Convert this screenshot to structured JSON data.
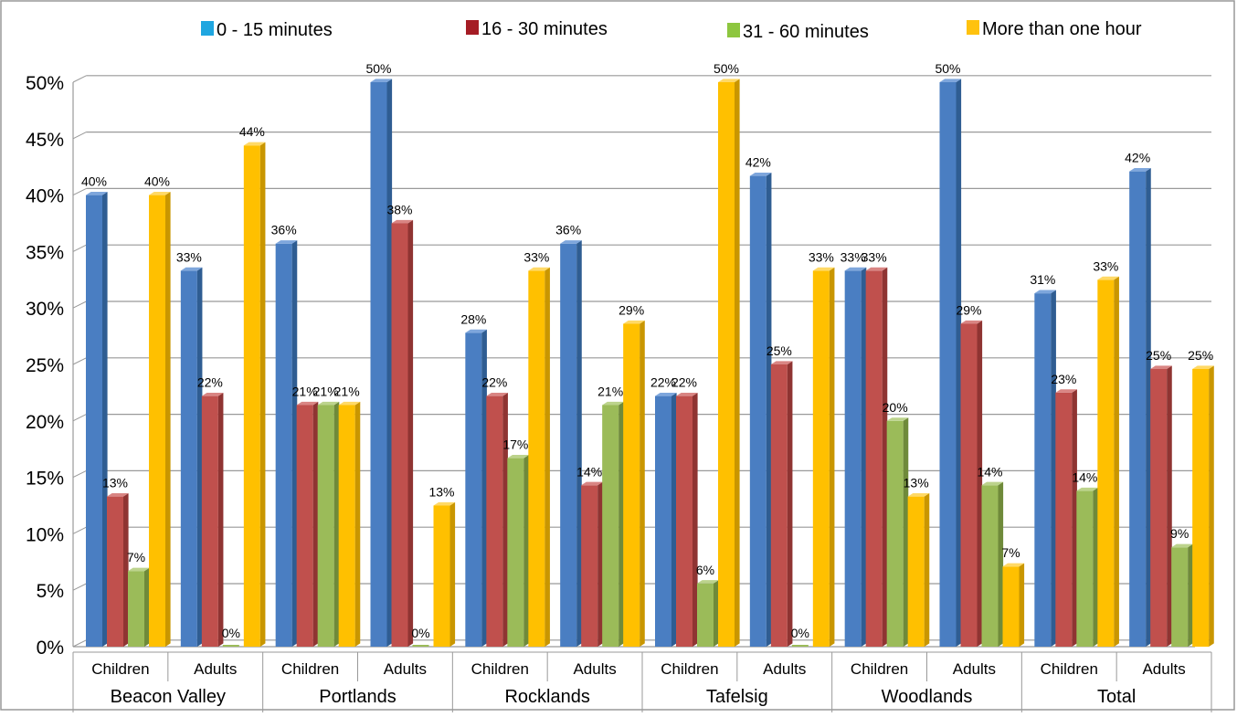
{
  "colors": {
    "series": [
      "#4a7ec2",
      "#c0504d",
      "#9bbb59",
      "#ffc000"
    ],
    "series_side": [
      "#2f5d92",
      "#8f3432",
      "#6f8a3a",
      "#c99600"
    ],
    "series_top": [
      "#7ea6dc",
      "#d98583",
      "#bcd38c",
      "#ffd966"
    ],
    "legend_swatches": [
      "#1fa6e0",
      "#a51c24",
      "#8dc63f",
      "#ffc20e"
    ],
    "grid": "#999999",
    "frame": "#999999"
  },
  "chart_data": {
    "type": "bar",
    "title": "",
    "xlabel": "",
    "ylabel": "",
    "ylim": [
      0,
      50
    ],
    "yticks": [
      "0%",
      "5%",
      "10%",
      "15%",
      "20%",
      "25%",
      "30%",
      "35%",
      "40%",
      "45%",
      "50%"
    ],
    "groups": [
      "Beacon Valley",
      "Portlands",
      "Rocklands",
      "Tafelsig",
      "Woodlands",
      "Total"
    ],
    "subcategories": [
      "Children",
      "Adults"
    ],
    "categories": [
      "Beacon Valley Children",
      "Beacon Valley Adults",
      "Portlands Children",
      "Portlands Adults",
      "Rocklands Children",
      "Rocklands Adults",
      "Tafelsig Children",
      "Tafelsig Adults",
      "Woodlands Children",
      "Woodlands Adults",
      "Total Children",
      "Total Adults"
    ],
    "series": [
      {
        "name": "0 - 15 minutes",
        "values": [
          40,
          33.3,
          35.7,
          50,
          27.8,
          35.7,
          22.2,
          41.7,
          33.3,
          50,
          31.3,
          42.1
        ],
        "labels": [
          "40%",
          "33%",
          "36%",
          "50%",
          "28%",
          "36%",
          "22%",
          "42%",
          "33%",
          "50%",
          "31%",
          "42%"
        ]
      },
      {
        "name": "16 - 30 minutes",
        "values": [
          13.3,
          22.2,
          21.4,
          37.5,
          22.2,
          14.3,
          22.2,
          25,
          33.3,
          28.6,
          22.5,
          24.6
        ],
        "labels": [
          "13%",
          "22%",
          "21%",
          "38%",
          "22%",
          "14%",
          "22%",
          "25%",
          "33%",
          "29%",
          "23%",
          "25%"
        ]
      },
      {
        "name": "31 - 60 minutes",
        "values": [
          6.7,
          0,
          21.4,
          0,
          16.7,
          21.4,
          5.6,
          0,
          20,
          14.3,
          13.8,
          8.8
        ],
        "labels": [
          "7%",
          "0%",
          "21%",
          "0%",
          "17%",
          "21%",
          "6%",
          "0%",
          "20%",
          "14%",
          "14%",
          "9%"
        ]
      },
      {
        "name": "More than one hour",
        "values": [
          40,
          44.4,
          21.4,
          12.5,
          33.3,
          28.6,
          50,
          33.3,
          13.3,
          7.1,
          32.5,
          24.6
        ],
        "labels": [
          "40%",
          "44%",
          "21%",
          "13%",
          "33%",
          "29%",
          "50%",
          "33%",
          "13%",
          "7%",
          "33%",
          "25%"
        ]
      }
    ],
    "grid": true,
    "legend_position": "top"
  }
}
